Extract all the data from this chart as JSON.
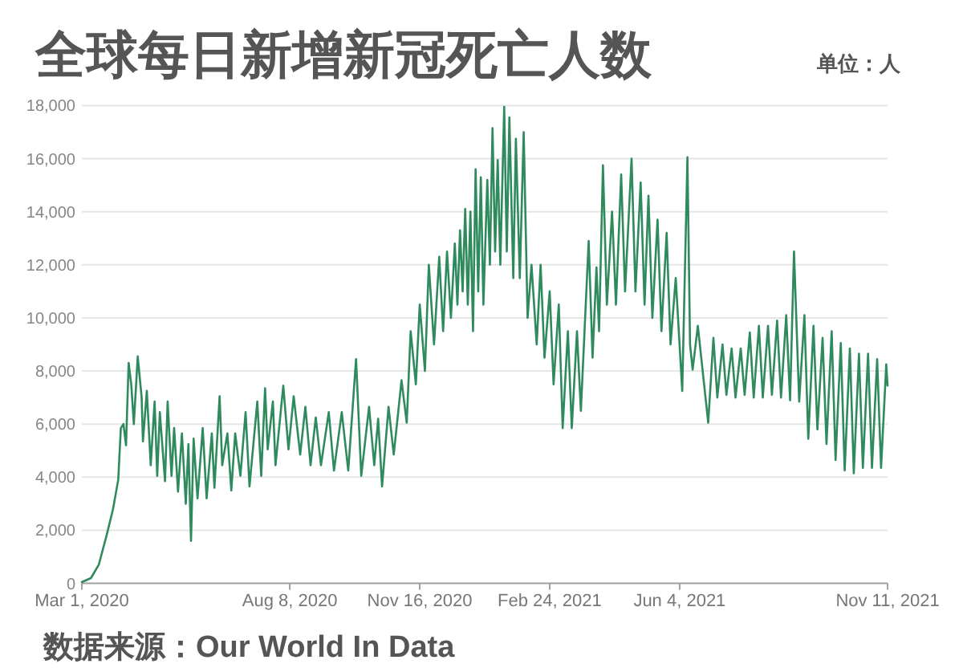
{
  "chart_data": {
    "type": "line",
    "title": "全球每日新增新冠死亡人数",
    "annotations": [
      "单位：人",
      "数据来源：Our World In Data"
    ],
    "color": "#2f8a5e",
    "grid": "y",
    "xlim": [
      "2020-03-01",
      "2021-11-11"
    ],
    "xticks": [
      {
        "value": "2020-03-01",
        "label": "Mar 1, 2020"
      },
      {
        "value": "2020-08-08",
        "label": "Aug 8, 2020"
      },
      {
        "value": "2020-11-16",
        "label": "Nov 16, 2020"
      },
      {
        "value": "2021-02-24",
        "label": "Feb 24, 2021"
      },
      {
        "value": "2021-06-04",
        "label": "Jun 4, 2021"
      },
      {
        "value": "2021-11-11",
        "label": "Nov 11, 2021"
      }
    ],
    "ylim": [
      0,
      18000
    ],
    "yticks": [
      0,
      {
        "value": 2000,
        "label": "2,000"
      },
      {
        "value": 4000,
        "label": "4,000"
      },
      {
        "value": 6000,
        "label": "6,000"
      },
      {
        "value": 8000,
        "label": "8,000"
      },
      {
        "value": 10000,
        "label": "10,000"
      },
      {
        "value": 12000,
        "label": "12,000"
      },
      {
        "value": 14000,
        "label": "14,000"
      },
      {
        "value": 16000,
        "label": "16,000"
      },
      {
        "value": 18000,
        "label": "18,000"
      }
    ],
    "x": [
      "2020-03-01",
      "2020-03-08",
      "2020-03-14",
      "2020-03-20",
      "2020-03-25",
      "2020-03-29",
      "2020-03-31",
      "2020-04-02",
      "2020-04-04",
      "2020-04-06",
      "2020-04-08",
      "2020-04-10",
      "2020-04-13",
      "2020-04-16",
      "2020-04-17",
      "2020-04-20",
      "2020-04-23",
      "2020-04-26",
      "2020-04-28",
      "2020-04-30",
      "2020-05-04",
      "2020-05-06",
      "2020-05-09",
      "2020-05-11",
      "2020-05-14",
      "2020-05-17",
      "2020-05-20",
      "2020-05-22",
      "2020-05-24",
      "2020-05-26",
      "2020-05-29",
      "2020-06-02",
      "2020-06-05",
      "2020-06-09",
      "2020-06-11",
      "2020-06-15",
      "2020-06-17",
      "2020-06-21",
      "2020-06-24",
      "2020-06-27",
      "2020-07-01",
      "2020-07-05",
      "2020-07-08",
      "2020-07-14",
      "2020-07-17",
      "2020-07-20",
      "2020-07-22",
      "2020-07-26",
      "2020-07-28",
      "2020-08-03",
      "2020-08-07",
      "2020-08-11",
      "2020-08-16",
      "2020-08-20",
      "2020-08-24",
      "2020-08-28",
      "2020-09-01",
      "2020-09-07",
      "2020-09-11",
      "2020-09-17",
      "2020-09-22",
      "2020-09-28",
      "2020-10-02",
      "2020-10-08",
      "2020-10-12",
      "2020-10-15",
      "2020-10-18",
      "2020-10-23",
      "2020-10-27",
      "2020-11-02",
      "2020-11-06",
      "2020-11-09",
      "2020-11-13",
      "2020-11-16",
      "2020-11-20",
      "2020-11-23",
      "2020-11-27",
      "2020-12-01",
      "2020-12-04",
      "2020-12-07",
      "2020-12-10",
      "2020-12-13",
      "2020-12-15",
      "2020-12-17",
      "2020-12-19",
      "2020-12-21",
      "2020-12-23",
      "2020-12-25",
      "2020-12-27",
      "2020-12-29",
      "2020-12-31",
      "2021-01-02",
      "2021-01-04",
      "2021-01-07",
      "2021-01-09",
      "2021-01-11",
      "2021-01-13",
      "2021-01-15",
      "2021-01-17",
      "2021-01-20",
      "2021-01-22",
      "2021-01-24",
      "2021-01-27",
      "2021-01-29",
      "2021-02-01",
      "2021-02-04",
      "2021-02-07",
      "2021-02-10",
      "2021-02-14",
      "2021-02-17",
      "2021-02-20",
      "2021-02-24",
      "2021-02-27",
      "2021-03-03",
      "2021-03-06",
      "2021-03-10",
      "2021-03-13",
      "2021-03-17",
      "2021-03-20",
      "2021-03-26",
      "2021-03-29",
      "2021-04-01",
      "2021-04-03",
      "2021-04-06",
      "2021-04-09",
      "2021-04-13",
      "2021-04-16",
      "2021-04-20",
      "2021-04-23",
      "2021-04-28",
      "2021-05-01",
      "2021-05-05",
      "2021-05-08",
      "2021-05-11",
      "2021-05-14",
      "2021-05-18",
      "2021-05-21",
      "2021-05-25",
      "2021-05-28",
      "2021-06-01",
      "2021-06-06",
      "2021-06-10",
      "2021-06-12",
      "2021-06-14",
      "2021-06-18",
      "2021-06-26",
      "2021-06-30",
      "2021-07-03",
      "2021-07-07",
      "2021-07-10",
      "2021-07-14",
      "2021-07-17",
      "2021-07-21",
      "2021-07-24",
      "2021-07-28",
      "2021-07-31",
      "2021-08-04",
      "2021-08-07",
      "2021-08-11",
      "2021-08-14",
      "2021-08-18",
      "2021-08-21",
      "2021-08-25",
      "2021-08-28",
      "2021-08-31",
      "2021-09-04",
      "2021-09-08",
      "2021-09-11",
      "2021-09-15",
      "2021-09-18",
      "2021-09-22",
      "2021-09-25",
      "2021-09-29",
      "2021-10-02",
      "2021-10-06",
      "2021-10-09",
      "2021-10-13",
      "2021-10-16",
      "2021-10-20",
      "2021-10-23",
      "2021-10-27",
      "2021-10-30",
      "2021-11-03",
      "2021-11-06",
      "2021-11-10",
      "2021-11-11"
    ],
    "values": [
      50,
      200,
      700,
      1800,
      2800,
      3900,
      5850,
      6000,
      5200,
      8300,
      7500,
      6000,
      8550,
      7000,
      5350,
      7250,
      4450,
      6850,
      4050,
      6450,
      3850,
      6850,
      4050,
      5850,
      3450,
      5650,
      3000,
      5250,
      1600,
      5450,
      3200,
      5850,
      3200,
      5650,
      3600,
      7050,
      4450,
      5650,
      3500,
      5650,
      4050,
      6450,
      3650,
      6850,
      4050,
      7350,
      5050,
      6850,
      4450,
      7450,
      5050,
      7050,
      4850,
      6650,
      4450,
      6250,
      4450,
      6450,
      4250,
      6450,
      4250,
      8450,
      4050,
      6650,
      4450,
      6200,
      3650,
      6650,
      4850,
      7650,
      6050,
      9500,
      7500,
      10500,
      8000,
      12000,
      9000,
      12300,
      9500,
      12500,
      10000,
      12800,
      10500,
      13300,
      11000,
      14100,
      10500,
      14000,
      9500,
      15600,
      11000,
      15300,
      10500,
      15200,
      12000,
      17150,
      12500,
      15950,
      12000,
      17950,
      12500,
      17550,
      11500,
      16750,
      11500,
      17000,
      10000,
      12000,
      9000,
      12000,
      8500,
      11000,
      7500,
      10500,
      5850,
      9500,
      5850,
      9500,
      6500,
      12900,
      8500,
      11900,
      9500,
      15750,
      10500,
      14000,
      10500,
      15400,
      11000,
      16000,
      11000,
      15100,
      10500,
      14600,
      10000,
      13700,
      9500,
      13200,
      9000,
      11500,
      7250,
      16050,
      9000,
      8050,
      9700,
      6050,
      9250,
      7000,
      9000,
      7100,
      8850,
      7000,
      8850,
      7100,
      9450,
      7000,
      9700,
      7000,
      9700,
      7100,
      9900,
      7000,
      10100,
      6900,
      12500,
      6850,
      10100,
      5450,
      9700,
      5800,
      9250,
      5250,
      9500,
      4650,
      9050,
      4250,
      8850,
      4150,
      8650,
      4350,
      8650,
      4350,
      8450,
      4350,
      8250,
      7450
    ]
  }
}
